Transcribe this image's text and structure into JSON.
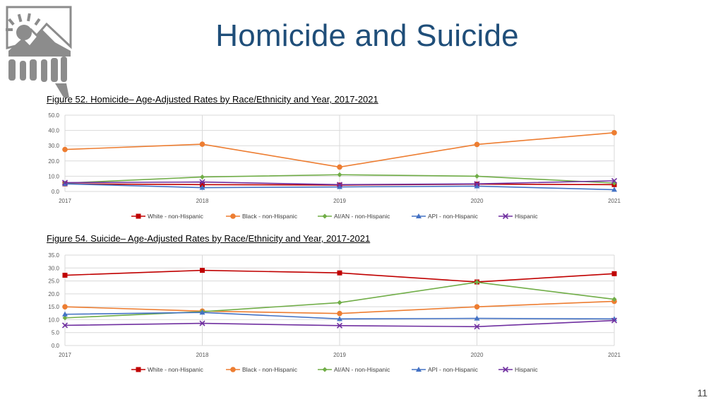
{
  "slide": {
    "title": "Homicide and Suicide",
    "page_number": "11"
  },
  "colors": {
    "title": "#1f4e79",
    "White - non-Hispanic": "#c00000",
    "Black - non-Hispanic": "#ed7d31",
    "AI/AN - non-Hispanic": "#70ad47",
    "API - non-Hispanic": "#4472c4",
    "Hispanic": "#7030a0"
  },
  "chart_data": [
    {
      "type": "line",
      "title": "Figure 52. Homicide– Age-Adjusted Rates by Race/Ethnicity and Year, 2017-2021",
      "x": [
        "2017",
        "2018",
        "2019",
        "2020",
        "2021"
      ],
      "ylim": [
        0,
        50
      ],
      "yticks": [
        "0.0",
        "10.0",
        "20.0",
        "30.0",
        "40.0",
        "50.0"
      ],
      "grid": true,
      "legend": "bottom",
      "series": [
        {
          "name": "White - non-Hispanic",
          "marker": "square",
          "values": [
            5.0,
            4.5,
            4.2,
            4.8,
            4.5
          ]
        },
        {
          "name": "Black - non-Hispanic",
          "marker": "circle",
          "values": [
            27.5,
            31.0,
            16.0,
            30.8,
            38.5
          ]
        },
        {
          "name": "AI/AN - non-Hispanic",
          "marker": "diamond",
          "values": [
            5.5,
            9.5,
            11.0,
            10.0,
            5.5
          ]
        },
        {
          "name": "API - non-Hispanic",
          "marker": "triangle",
          "values": [
            5.0,
            2.5,
            3.0,
            3.5,
            1.2
          ]
        },
        {
          "name": "Hispanic",
          "marker": "x",
          "values": [
            5.8,
            6.2,
            4.5,
            5.0,
            7.0
          ]
        }
      ]
    },
    {
      "type": "line",
      "title": "Figure 54. Suicide– Age-Adjusted Rates by Race/Ethnicity and Year, 2017-2021",
      "x": [
        "2017",
        "2018",
        "2019",
        "2020",
        "2021"
      ],
      "ylim": [
        0,
        35
      ],
      "yticks": [
        "0.0",
        "5.0",
        "10.0",
        "15.0",
        "20.0",
        "25.0",
        "30.0",
        "35.0"
      ],
      "grid": true,
      "legend": "bottom",
      "series": [
        {
          "name": "White - non-Hispanic",
          "marker": "square",
          "values": [
            27.2,
            29.1,
            28.1,
            24.6,
            27.8
          ]
        },
        {
          "name": "Black - non-Hispanic",
          "marker": "circle",
          "values": [
            15.0,
            13.3,
            12.4,
            15.0,
            17.1
          ]
        },
        {
          "name": "AI/AN - non-Hispanic",
          "marker": "diamond",
          "values": [
            10.7,
            13.1,
            16.6,
            24.5,
            17.9
          ]
        },
        {
          "name": "API - non-Hispanic",
          "marker": "triangle",
          "values": [
            12.1,
            12.8,
            10.3,
            10.5,
            10.3
          ]
        },
        {
          "name": "Hispanic",
          "marker": "x",
          "values": [
            7.8,
            8.6,
            7.7,
            7.3,
            9.7
          ]
        }
      ]
    }
  ]
}
